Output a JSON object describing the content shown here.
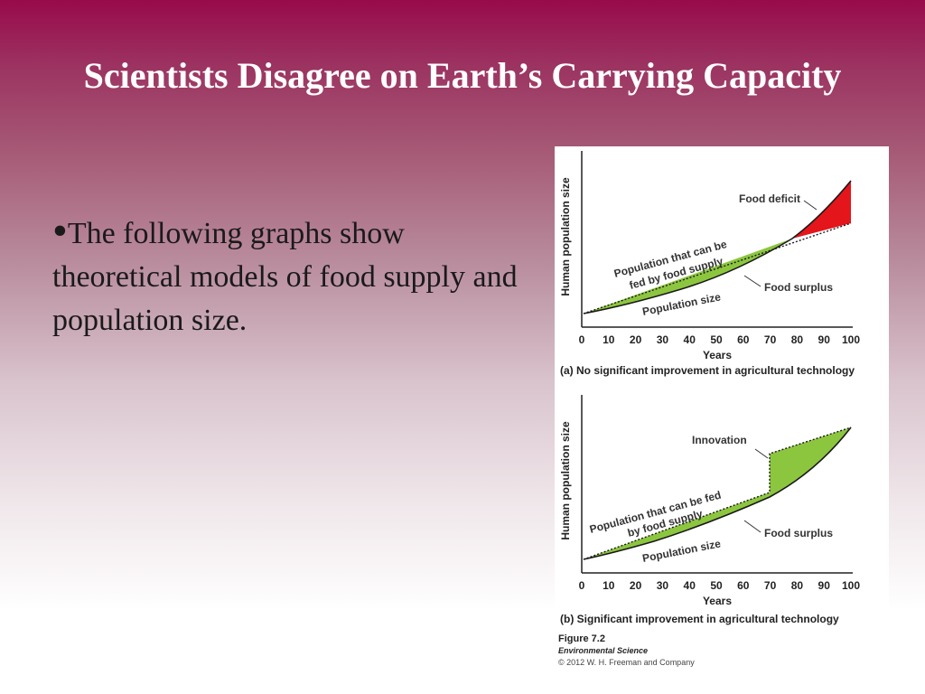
{
  "slide": {
    "title": "Scientists Disagree on Earth’s Carrying Capacity",
    "bullet_symbol": "•",
    "bullet_text": "The following graphs show theoretical models of food supply and population size."
  },
  "colors": {
    "surplus": "#8cc63f",
    "deficit": "#e4151b",
    "title_text": "#ffffff"
  },
  "figure": {
    "y_axis_label": "Human population size",
    "x_axis_label": "Years",
    "x_ticks": [
      "0",
      "10",
      "20",
      "30",
      "40",
      "50",
      "60",
      "70",
      "80",
      "90",
      "100"
    ],
    "panel_a": {
      "caption": "(a) No significant improvement in agricultural technology",
      "food_deficit_label": "Food deficit",
      "food_surplus_label": "Food surplus",
      "food_supply_curve_label_1": "Population that can be",
      "food_supply_curve_label_2": "fed by food supply",
      "population_curve_label": "Population size"
    },
    "panel_b": {
      "caption": "(b) Significant improvement in agricultural technology",
      "innovation_label": "Innovation",
      "food_surplus_label": "Food surplus",
      "food_supply_curve_label_1": "Population that can be fed",
      "food_supply_curve_label_2": "by food supply",
      "population_curve_label": "Population size"
    },
    "figure_number": "Figure 7.2",
    "book_title": "Environmental Science",
    "copyright": "© 2012 W. H. Freeman and Company"
  }
}
